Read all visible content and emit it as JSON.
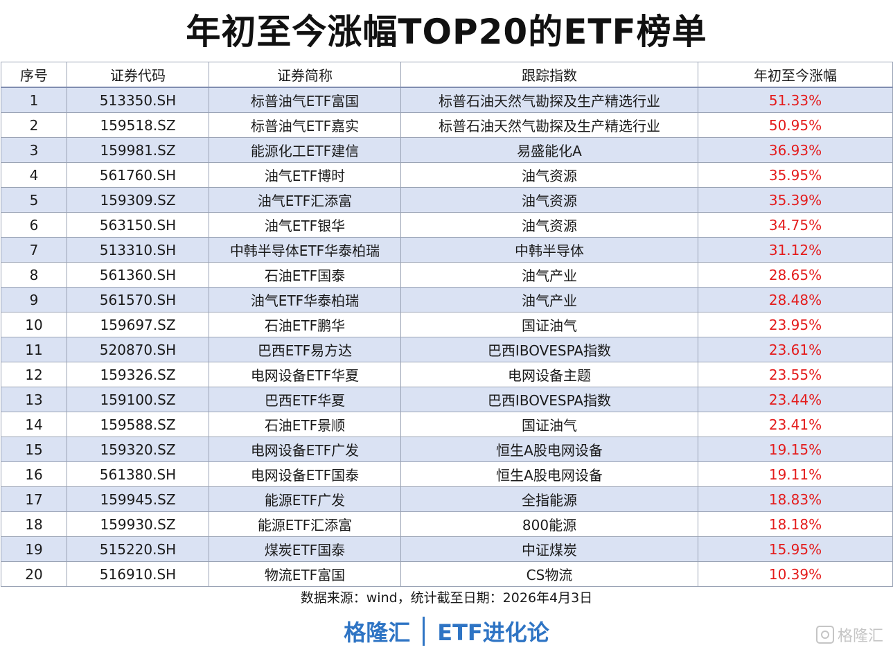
{
  "title": "年初至今涨幅TOP20的ETF榜单",
  "table": {
    "headers": [
      "序号",
      "证券代码",
      "证券简称",
      "跟踪指数",
      "年初至今涨幅"
    ],
    "rows": [
      {
        "no": "1",
        "code": "513350.SH",
        "name": "标普油气ETF富国",
        "index": "标普石油天然气勘探及生产精选行业",
        "pct": "51.33%"
      },
      {
        "no": "2",
        "code": "159518.SZ",
        "name": "标普油气ETF嘉实",
        "index": "标普石油天然气勘探及生产精选行业",
        "pct": "50.95%"
      },
      {
        "no": "3",
        "code": "159981.SZ",
        "name": "能源化工ETF建信",
        "index": "易盛能化A",
        "pct": "36.93%"
      },
      {
        "no": "4",
        "code": "561760.SH",
        "name": "油气ETF博时",
        "index": "油气资源",
        "pct": "35.95%"
      },
      {
        "no": "5",
        "code": "159309.SZ",
        "name": "油气ETF汇添富",
        "index": "油气资源",
        "pct": "35.39%"
      },
      {
        "no": "6",
        "code": "563150.SH",
        "name": "油气ETF银华",
        "index": "油气资源",
        "pct": "34.75%"
      },
      {
        "no": "7",
        "code": "513310.SH",
        "name": "中韩半导体ETF华泰柏瑞",
        "index": "中韩半导体",
        "pct": "31.12%"
      },
      {
        "no": "8",
        "code": "561360.SH",
        "name": "石油ETF国泰",
        "index": "油气产业",
        "pct": "28.65%"
      },
      {
        "no": "9",
        "code": "561570.SH",
        "name": "油气ETF华泰柏瑞",
        "index": "油气产业",
        "pct": "28.48%"
      },
      {
        "no": "10",
        "code": "159697.SZ",
        "name": "石油ETF鹏华",
        "index": "国证油气",
        "pct": "23.95%"
      },
      {
        "no": "11",
        "code": "520870.SH",
        "name": "巴西ETF易方达",
        "index": "巴西IBOVESPA指数",
        "pct": "23.61%"
      },
      {
        "no": "12",
        "code": "159326.SZ",
        "name": "电网设备ETF华夏",
        "index": "电网设备主题",
        "pct": "23.55%"
      },
      {
        "no": "13",
        "code": "159100.SZ",
        "name": "巴西ETF华夏",
        "index": "巴西IBOVESPA指数",
        "pct": "23.44%"
      },
      {
        "no": "14",
        "code": "159588.SZ",
        "name": "石油ETF景顺",
        "index": "国证油气",
        "pct": "23.41%"
      },
      {
        "no": "15",
        "code": "159320.SZ",
        "name": "电网设备ETF广发",
        "index": "恒生A股电网设备",
        "pct": "19.15%"
      },
      {
        "no": "16",
        "code": "561380.SH",
        "name": "电网设备ETF国泰",
        "index": "恒生A股电网设备",
        "pct": "19.11%"
      },
      {
        "no": "17",
        "code": "159945.SZ",
        "name": "能源ETF广发",
        "index": "全指能源",
        "pct": "18.83%"
      },
      {
        "no": "18",
        "code": "159930.SZ",
        "name": "能源ETF汇添富",
        "index": "800能源",
        "pct": "18.18%"
      },
      {
        "no": "19",
        "code": "515220.SH",
        "name": "煤炭ETF国泰",
        "index": "中证煤炭",
        "pct": "15.95%"
      },
      {
        "no": "20",
        "code": "516910.SH",
        "name": "物流ETF富国",
        "index": "CS物流",
        "pct": "10.39%"
      }
    ]
  },
  "source": "数据来源：wind，统计截至日期：2026年4月3日",
  "footer": {
    "brand": "格隆汇",
    "column": "ETF进化论"
  },
  "watermark": {
    "text": "格隆汇",
    "icon": "gelonghui-logo-icon"
  },
  "colors": {
    "row_stripe": "#dae2f3",
    "pct_red": "#e41c1c",
    "footer_blue": "#2e74c4"
  }
}
